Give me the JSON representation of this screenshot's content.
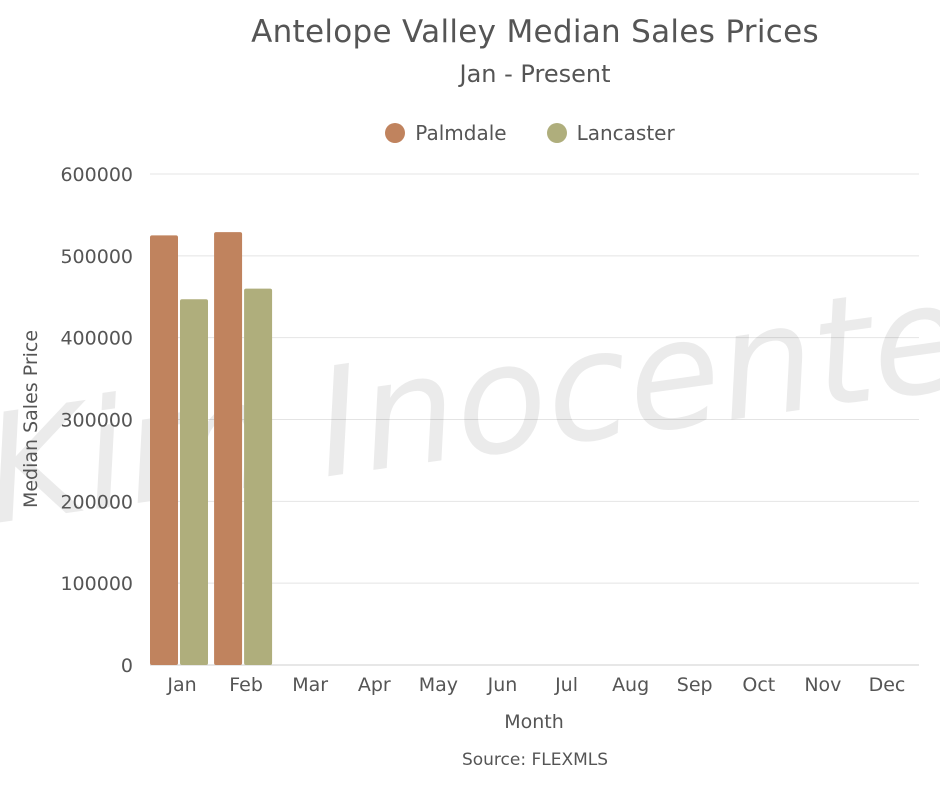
{
  "chart_data": {
    "type": "bar",
    "title": "Antelope Valley Median Sales Prices",
    "subtitle": "Jan - Present",
    "xlabel": "Month",
    "ylabel": "Median Sales Price",
    "categories": [
      "Jan",
      "Feb",
      "Mar",
      "Apr",
      "May",
      "Jun",
      "Jul",
      "Aug",
      "Sep",
      "Oct",
      "Nov",
      "Dec"
    ],
    "series": [
      {
        "name": "Palmdale",
        "color": "#c0835e",
        "values": [
          525000,
          529000,
          null,
          null,
          null,
          null,
          null,
          null,
          null,
          null,
          null,
          null
        ]
      },
      {
        "name": "Lancaster",
        "color": "#afae7c",
        "values": [
          447000,
          460000,
          null,
          null,
          null,
          null,
          null,
          null,
          null,
          null,
          null,
          null
        ]
      }
    ],
    "ylim": [
      0,
      600000
    ],
    "yticks": [
      0,
      100000,
      200000,
      300000,
      400000,
      500000,
      600000
    ],
    "grid": true,
    "legend_position": "top-center",
    "source": "Source: FLEXMLS"
  },
  "watermark": "Kim Inocente"
}
